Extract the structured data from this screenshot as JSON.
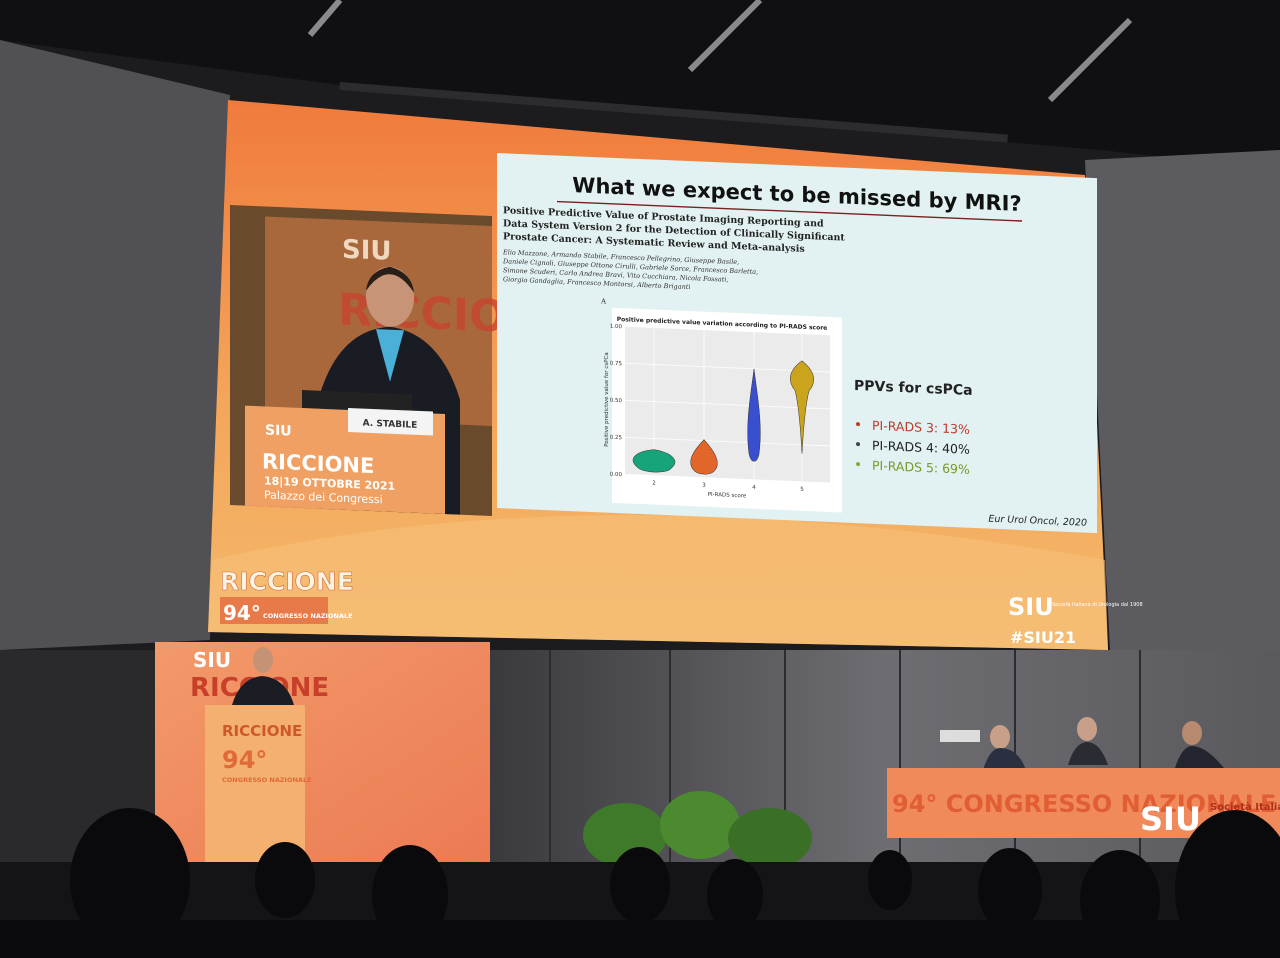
{
  "slide": {
    "title": "What we expect to be missed by MRI?",
    "paper_title_lines": [
      "Positive Predictive Value of Prostate Imaging Reporting and",
      "Data System Version 2 for the Detection of Clinically Significant",
      "Prostate Cancer: A Systematic Review and Meta-analysis"
    ],
    "author_lines": [
      "Elio Mazzone, Armando Stabile, Francesco Pellegrino, Giuseppe Basile,",
      "Daniele Cignoli, Giuseppe Ottone Cirulli, Gabriele Sorce, Francesco Barletta,",
      "Simone Scuderi, Carlo Andrea Bravi, Vito Cucchiara, Nicola Fossati,",
      "Giorgio Gandaglia, Francesco Montorsi, Alberto Briganti"
    ],
    "panel_label": "A",
    "chart": {
      "title": "Positive predictive value variation according to PI-RADS score",
      "y_label": "Positive predictive value for csPCa",
      "x_label": "PI-RADS score",
      "y_ticks": [
        "0.00",
        "0.25",
        "0.50",
        "0.75",
        "1.00"
      ],
      "x_ticks": [
        "2",
        "3",
        "4",
        "5"
      ]
    },
    "summary": {
      "heading": "PPVs for csPCa",
      "items": [
        "PI-RADS 3: 13%",
        "PI-RADS 4: 40%",
        "PI-RADS 5: 69%"
      ]
    },
    "citation": "Eur Urol Oncol, 2020"
  },
  "slide_footer": {
    "location": "RICCIONE",
    "edition": "94°",
    "congress": "CONGRESSO NAZIONALE",
    "logo": "SIU",
    "society": "Società Italiana di Urologia dal 1908",
    "hashtag": "#SIU21"
  },
  "video_inset": {
    "logo": "SIU",
    "location": "RICCIONE",
    "dates": "18|19 OTTOBRE 2021",
    "venue": "Palazzo dei Congressi",
    "name_card": "A. STABILE"
  },
  "stage": {
    "backdrop_logo": "SIU",
    "backdrop_location": "RICCIONE",
    "podium_location": "RICCIONE",
    "podium_edition": "94°",
    "podium_congress": "CONGRESSO NAZIONALE",
    "table_banner": "94° CONGRESSO NAZIONALE",
    "table_logo": "SIU",
    "table_society": "Società Italiana di Urologia"
  }
}
